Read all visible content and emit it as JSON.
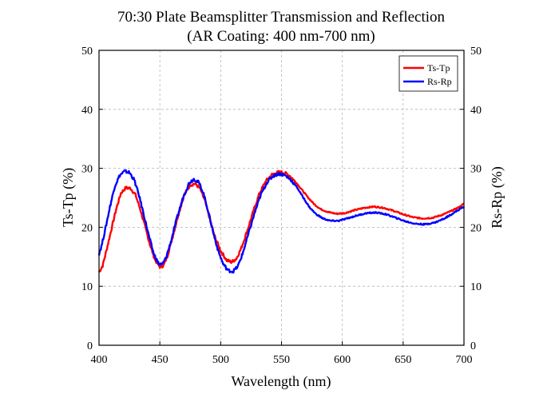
{
  "chart_data": {
    "type": "line",
    "title": "70:30 Plate Beamsplitter Transmission and Reflection",
    "subtitle": "(AR Coating: 400 nm-700 nm)",
    "xlabel": "Wavelength (nm)",
    "ylabel_left": "Ts-Tp (%)",
    "ylabel_right": "Rs-Rp (%)",
    "xlim": [
      400,
      700
    ],
    "ylim": [
      0,
      50
    ],
    "x_ticks": [
      "400",
      "450",
      "500",
      "550",
      "600",
      "650",
      "700"
    ],
    "y_ticks": [
      "0",
      "10",
      "20",
      "30",
      "40",
      "50"
    ],
    "grid": true,
    "legend_position": "top-right",
    "series": [
      {
        "name": "Ts-Tp",
        "color": "#ff0000",
        "axis": "left",
        "points": [
          [
            400,
            12.4
          ],
          [
            403,
            13.5
          ],
          [
            406,
            16.0
          ],
          [
            410,
            19.5
          ],
          [
            414,
            23.0
          ],
          [
            418,
            25.8
          ],
          [
            422,
            26.7
          ],
          [
            426,
            26.6
          ],
          [
            430,
            25.5
          ],
          [
            434,
            23.0
          ],
          [
            438,
            20.0
          ],
          [
            442,
            17.0
          ],
          [
            446,
            14.5
          ],
          [
            450,
            13.3
          ],
          [
            453,
            13.5
          ],
          [
            456,
            15.0
          ],
          [
            460,
            18.0
          ],
          [
            465,
            22.0
          ],
          [
            470,
            25.5
          ],
          [
            475,
            27.2
          ],
          [
            479,
            27.4
          ],
          [
            483,
            26.6
          ],
          [
            487,
            24.5
          ],
          [
            491,
            21.5
          ],
          [
            495,
            18.5
          ],
          [
            500,
            16.0
          ],
          [
            505,
            14.4
          ],
          [
            509,
            14.1
          ],
          [
            513,
            14.7
          ],
          [
            517,
            16.5
          ],
          [
            522,
            19.5
          ],
          [
            527,
            22.8
          ],
          [
            532,
            25.8
          ],
          [
            537,
            27.8
          ],
          [
            542,
            28.9
          ],
          [
            547,
            29.3
          ],
          [
            552,
            29.3
          ],
          [
            557,
            28.7
          ],
          [
            562,
            27.6
          ],
          [
            567,
            26.3
          ],
          [
            572,
            25.0
          ],
          [
            577,
            23.9
          ],
          [
            582,
            23.1
          ],
          [
            588,
            22.6
          ],
          [
            595,
            22.3
          ],
          [
            602,
            22.4
          ],
          [
            610,
            22.9
          ],
          [
            618,
            23.3
          ],
          [
            626,
            23.5
          ],
          [
            634,
            23.3
          ],
          [
            642,
            22.8
          ],
          [
            650,
            22.2
          ],
          [
            658,
            21.7
          ],
          [
            666,
            21.5
          ],
          [
            674,
            21.6
          ],
          [
            682,
            22.1
          ],
          [
            690,
            22.8
          ],
          [
            696,
            23.4
          ],
          [
            700,
            24.0
          ]
        ]
      },
      {
        "name": "Rs-Rp",
        "color": "#0000ff",
        "axis": "right",
        "points": [
          [
            400,
            15.5
          ],
          [
            402,
            16.8
          ],
          [
            405,
            19.5
          ],
          [
            409,
            23.5
          ],
          [
            413,
            27.0
          ],
          [
            417,
            28.8
          ],
          [
            421,
            29.5
          ],
          [
            425,
            29.3
          ],
          [
            429,
            28.0
          ],
          [
            433,
            25.3
          ],
          [
            437,
            22.0
          ],
          [
            441,
            18.5
          ],
          [
            445,
            15.5
          ],
          [
            449,
            13.8
          ],
          [
            452,
            13.7
          ],
          [
            455,
            14.8
          ],
          [
            459,
            17.5
          ],
          [
            464,
            21.5
          ],
          [
            469,
            25.0
          ],
          [
            474,
            27.5
          ],
          [
            478,
            28.2
          ],
          [
            482,
            27.6
          ],
          [
            486,
            25.7
          ],
          [
            490,
            22.5
          ],
          [
            494,
            19.0
          ],
          [
            498,
            16.0
          ],
          [
            502,
            13.8
          ],
          [
            506,
            12.7
          ],
          [
            510,
            12.5
          ],
          [
            514,
            13.3
          ],
          [
            518,
            15.5
          ],
          [
            523,
            19.0
          ],
          [
            528,
            22.5
          ],
          [
            533,
            25.5
          ],
          [
            538,
            27.6
          ],
          [
            543,
            28.7
          ],
          [
            548,
            29.1
          ],
          [
            553,
            28.8
          ],
          [
            558,
            28.0
          ],
          [
            563,
            26.7
          ],
          [
            568,
            25.0
          ],
          [
            573,
            23.4
          ],
          [
            578,
            22.3
          ],
          [
            584,
            21.5
          ],
          [
            590,
            21.1
          ],
          [
            597,
            21.1
          ],
          [
            604,
            21.5
          ],
          [
            612,
            22.0
          ],
          [
            620,
            22.4
          ],
          [
            628,
            22.5
          ],
          [
            636,
            22.2
          ],
          [
            644,
            21.6
          ],
          [
            652,
            21.0
          ],
          [
            660,
            20.6
          ],
          [
            668,
            20.5
          ],
          [
            676,
            20.8
          ],
          [
            684,
            21.5
          ],
          [
            692,
            22.5
          ],
          [
            700,
            23.5
          ]
        ]
      }
    ]
  }
}
